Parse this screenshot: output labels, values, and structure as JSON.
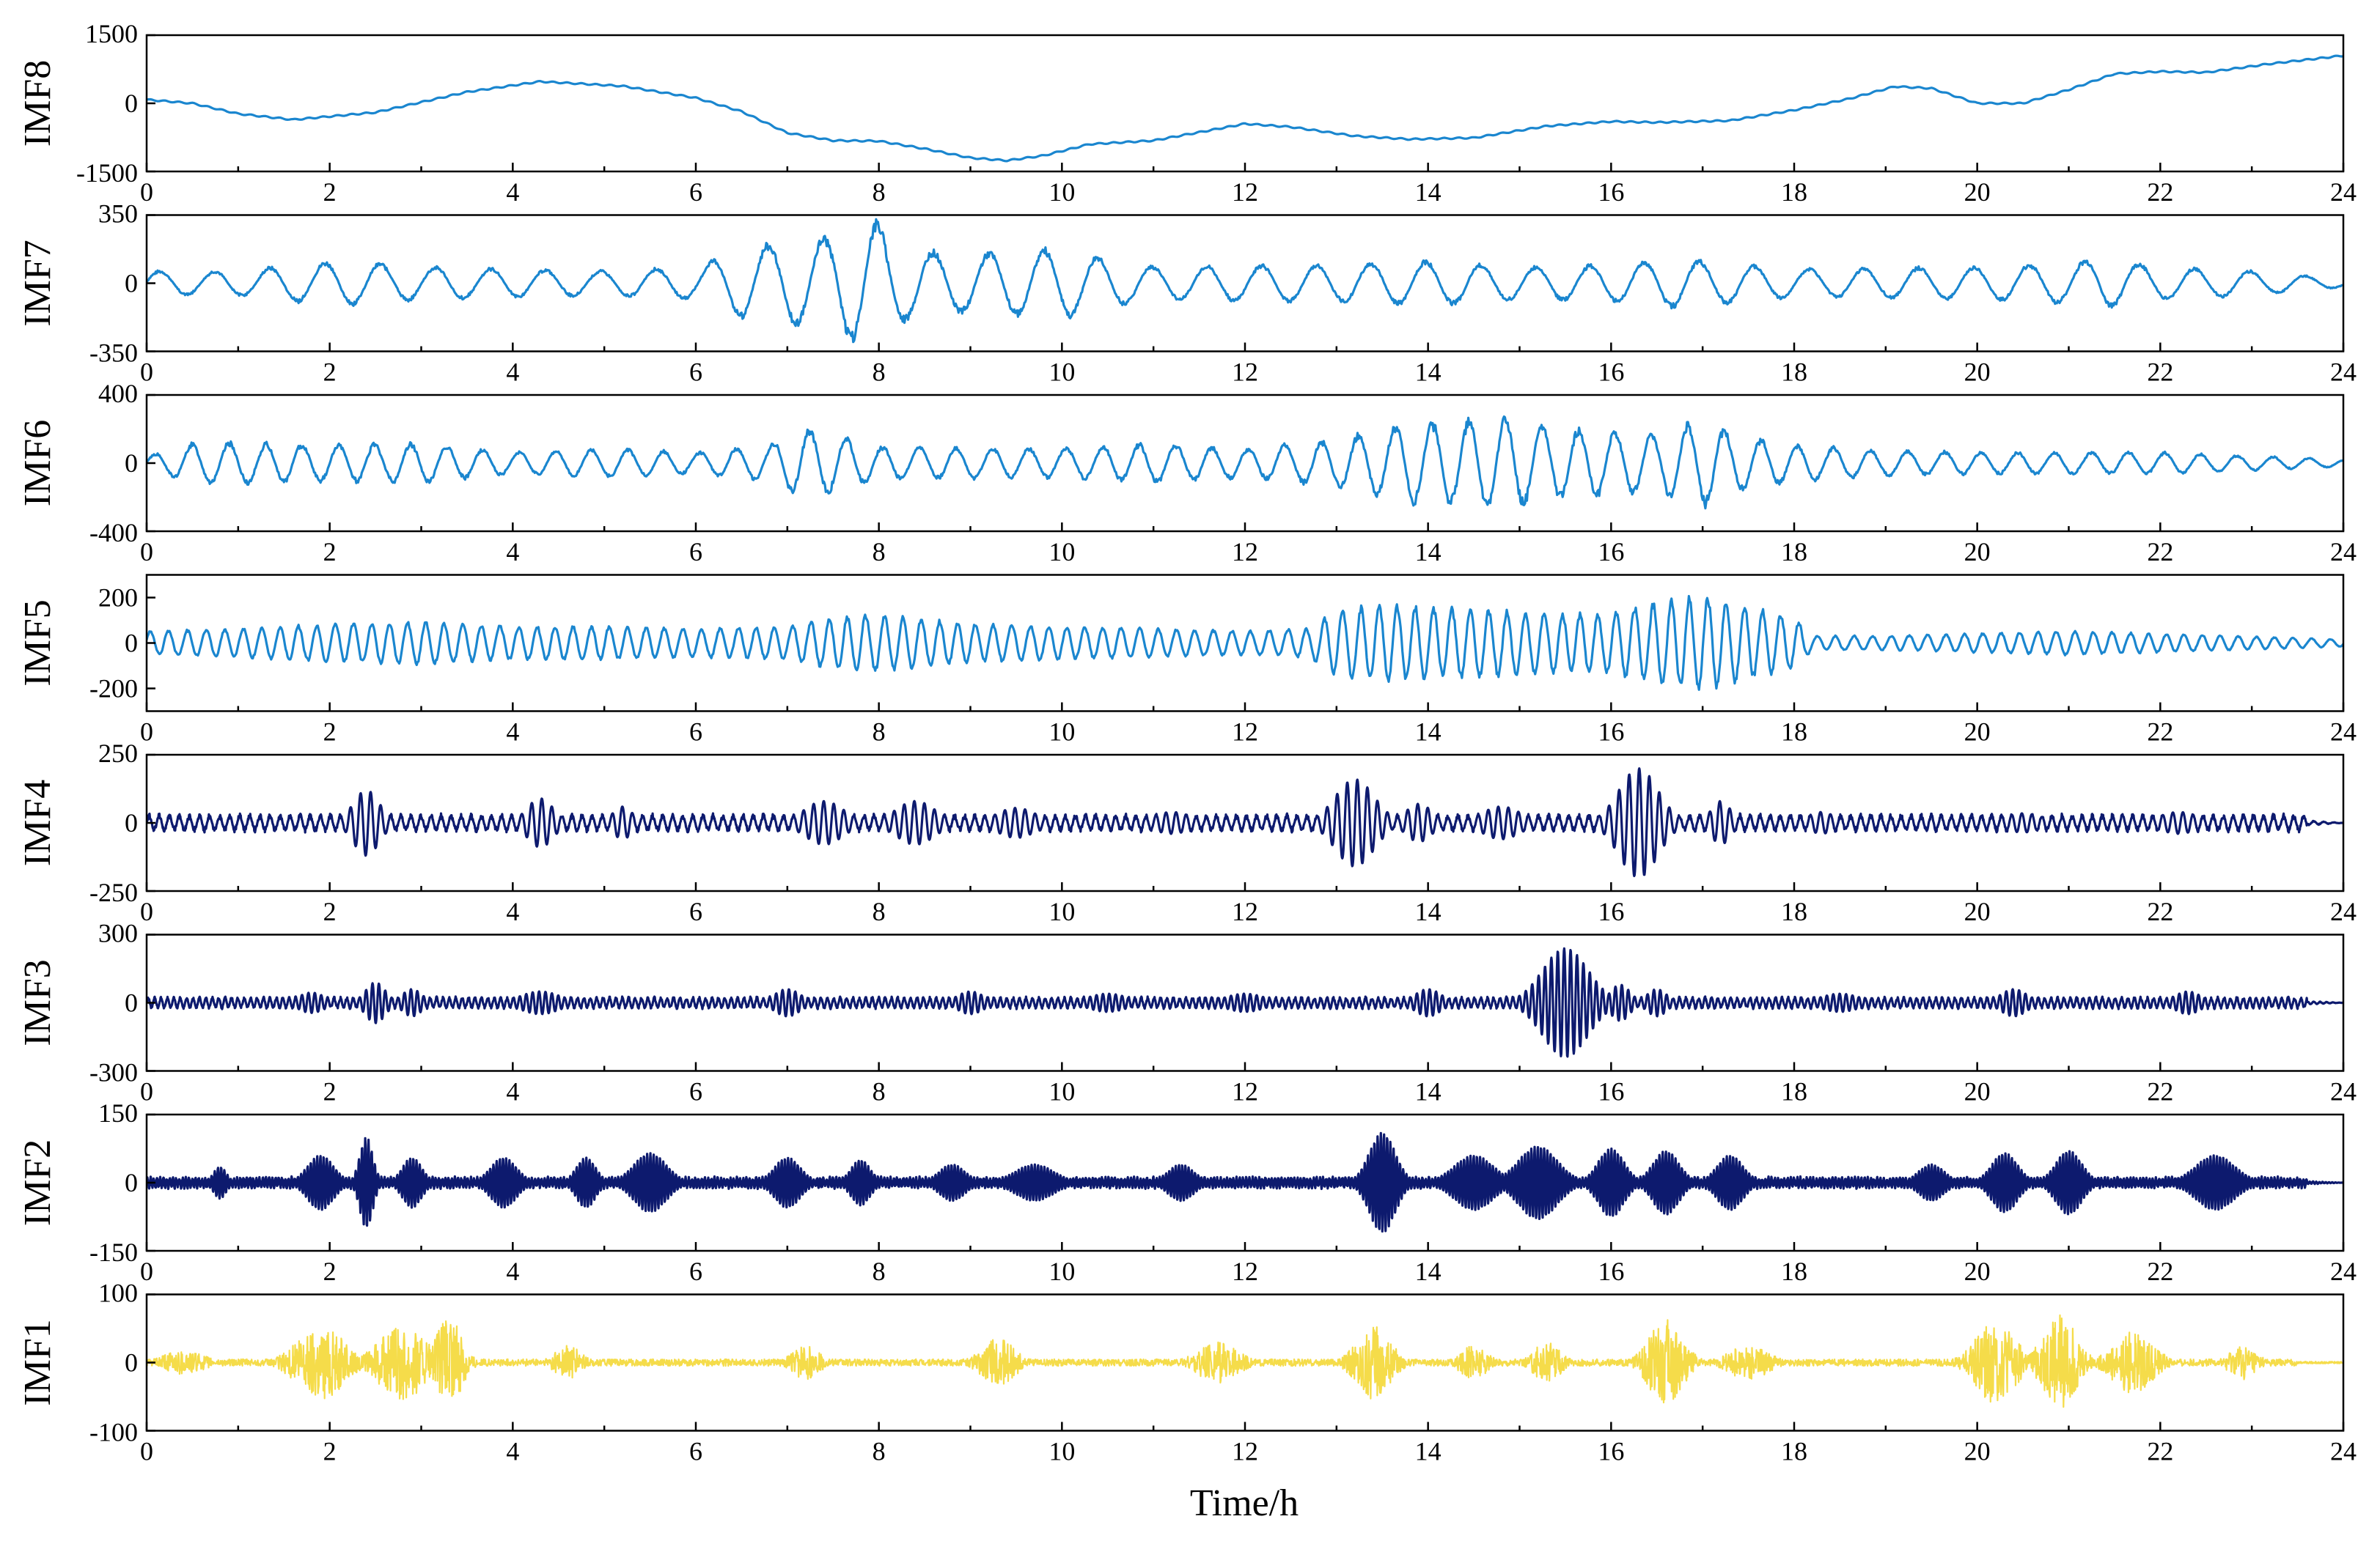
{
  "chart_data": {
    "type": "line",
    "xlabel": "Time/h",
    "xlim": [
      0,
      24
    ],
    "x_ticks": [
      "0",
      "2",
      "4",
      "6",
      "8",
      "10",
      "12",
      "14",
      "16",
      "18",
      "20",
      "22",
      "24"
    ],
    "panels": [
      {
        "name": "IMF8",
        "ylim": [
          -1500,
          1500
        ],
        "y_ticks": [
          "1500",
          "0",
          "-1500"
        ],
        "color": "#1a86cf",
        "kind": "trend",
        "points": [
          [
            0,
            80
          ],
          [
            0.5,
            0
          ],
          [
            1,
            -230
          ],
          [
            1.6,
            -360
          ],
          [
            2.5,
            -200
          ],
          [
            3.5,
            250
          ],
          [
            4.3,
            480
          ],
          [
            5.2,
            380
          ],
          [
            6,
            120
          ],
          [
            6.5,
            -180
          ],
          [
            7,
            -650
          ],
          [
            7.5,
            -820
          ],
          [
            8,
            -830
          ],
          [
            8.5,
            -1000
          ],
          [
            9,
            -1200
          ],
          [
            9.4,
            -1260
          ],
          [
            9.8,
            -1150
          ],
          [
            10.3,
            -900
          ],
          [
            11,
            -820
          ],
          [
            11.6,
            -600
          ],
          [
            12,
            -450
          ],
          [
            12.5,
            -520
          ],
          [
            13.2,
            -720
          ],
          [
            13.8,
            -790
          ],
          [
            14.5,
            -760
          ],
          [
            15.3,
            -500
          ],
          [
            16,
            -400
          ],
          [
            16.5,
            -420
          ],
          [
            17.3,
            -380
          ],
          [
            18,
            -150
          ],
          [
            18.6,
            100
          ],
          [
            19.1,
            370
          ],
          [
            19.5,
            330
          ],
          [
            20,
            0
          ],
          [
            20.5,
            0
          ],
          [
            21,
            300
          ],
          [
            21.5,
            650
          ],
          [
            22,
            700
          ],
          [
            22.5,
            680
          ],
          [
            23.2,
            870
          ],
          [
            24,
            1050
          ]
        ]
      },
      {
        "name": "IMF7",
        "ylim": [
          -350,
          350
        ],
        "y_ticks": [
          "350",
          "0",
          "-350"
        ],
        "color": "#1a86cf",
        "kind": "osc",
        "period": 0.6,
        "seed": 7,
        "noise": 0.25,
        "base": 40,
        "env": [
          [
            0,
            60
          ],
          [
            1,
            60
          ],
          [
            1.6,
            90
          ],
          [
            2.2,
            110
          ],
          [
            3,
            80
          ],
          [
            4,
            70
          ],
          [
            5,
            60
          ],
          [
            6,
            80
          ],
          [
            6.5,
            170
          ],
          [
            7,
            200
          ],
          [
            7.5,
            230
          ],
          [
            7.9,
            330
          ],
          [
            8.3,
            180
          ],
          [
            8.8,
            140
          ],
          [
            10,
            170
          ],
          [
            10.5,
            120
          ],
          [
            11,
            80
          ],
          [
            12,
            90
          ],
          [
            13,
            90
          ],
          [
            14,
            110
          ],
          [
            15,
            80
          ],
          [
            16,
            90
          ],
          [
            16.7,
            120
          ],
          [
            18,
            70
          ],
          [
            20,
            80
          ],
          [
            21,
            100
          ],
          [
            21.4,
            120
          ],
          [
            22,
            80
          ],
          [
            23,
            60
          ],
          [
            24,
            20
          ]
        ]
      },
      {
        "name": "IMF6",
        "ylim": [
          -400,
          400
        ],
        "y_ticks": [
          "400",
          "0",
          "-400"
        ],
        "color": "#1a86cf",
        "kind": "osc",
        "period": 0.4,
        "seed": 13,
        "noise": 0.3,
        "base": 30,
        "env": [
          [
            0,
            40
          ],
          [
            0.6,
            120
          ],
          [
            1.2,
            110
          ],
          [
            2,
            100
          ],
          [
            3,
            110
          ],
          [
            4,
            60
          ],
          [
            5,
            80
          ],
          [
            6,
            60
          ],
          [
            6.8,
            100
          ],
          [
            7.2,
            200
          ],
          [
            8,
            90
          ],
          [
            10,
            80
          ],
          [
            11,
            110
          ],
          [
            12,
            80
          ],
          [
            13,
            130
          ],
          [
            13.8,
            220
          ],
          [
            14.3,
            230
          ],
          [
            14.8,
            260
          ],
          [
            15.3,
            200
          ],
          [
            16,
            180
          ],
          [
            16.5,
            160
          ],
          [
            17,
            240
          ],
          [
            17.4,
            150
          ],
          [
            18,
            100
          ],
          [
            19,
            70
          ],
          [
            20,
            60
          ],
          [
            22,
            60
          ],
          [
            24,
            20
          ]
        ]
      },
      {
        "name": "IMF5",
        "ylim": [
          -300,
          300
        ],
        "y_ticks": [
          "200",
          "0",
          "-200"
        ],
        "tick_vals": [
          200,
          0,
          -200
        ],
        "color": "#1a86cf",
        "kind": "osc",
        "period": 0.2,
        "seed": 21,
        "noise": 0.2,
        "base": 20,
        "env": [
          [
            0,
            50
          ],
          [
            1,
            60
          ],
          [
            2,
            80
          ],
          [
            3,
            90
          ],
          [
            4,
            70
          ],
          [
            5,
            70
          ],
          [
            6,
            60
          ],
          [
            7,
            70
          ],
          [
            7.5,
            110
          ],
          [
            8,
            120
          ],
          [
            9,
            80
          ],
          [
            10,
            70
          ],
          [
            11,
            60
          ],
          [
            12,
            50
          ],
          [
            12.7,
            60
          ],
          [
            13,
            140
          ],
          [
            13.5,
            160
          ],
          [
            14,
            150
          ],
          [
            14.8,
            140
          ],
          [
            15.5,
            120
          ],
          [
            16,
            130
          ],
          [
            16.5,
            170
          ],
          [
            17,
            200
          ],
          [
            17.5,
            150
          ],
          [
            18,
            110
          ],
          [
            18.2,
            30
          ],
          [
            19,
            30
          ],
          [
            20,
            40
          ],
          [
            21,
            50
          ],
          [
            22,
            40
          ],
          [
            24,
            15
          ]
        ]
      },
      {
        "name": "IMF4",
        "ylim": [
          -250,
          250
        ],
        "y_ticks": [
          "250",
          "0",
          "-250"
        ],
        "color": "#0d1a6e",
        "kind": "burst",
        "period": 0.11,
        "seed": 31,
        "base": 25,
        "bursts": [
          [
            2.4,
            0.2,
            120
          ],
          [
            4.3,
            0.2,
            90
          ],
          [
            5.2,
            0.15,
            60
          ],
          [
            7.4,
            0.3,
            80
          ],
          [
            8.4,
            0.3,
            80
          ],
          [
            9.5,
            0.3,
            55
          ],
          [
            11.2,
            0.3,
            40
          ],
          [
            13.2,
            0.3,
            160
          ],
          [
            13.9,
            0.2,
            70
          ],
          [
            14.8,
            0.3,
            60
          ],
          [
            16.3,
            0.3,
            200
          ],
          [
            17.2,
            0.15,
            80
          ],
          [
            18.3,
            0.2,
            40
          ],
          [
            20.5,
            0.3,
            35
          ],
          [
            22.2,
            0.3,
            40
          ]
        ]
      },
      {
        "name": "IMF3",
        "ylim": [
          -300,
          300
        ],
        "y_ticks": [
          "300",
          "0",
          "-300"
        ],
        "color": "#0d1a6e",
        "kind": "burst",
        "period": 0.07,
        "seed": 41,
        "base": 20,
        "bursts": [
          [
            1.8,
            0.2,
            45
          ],
          [
            2.5,
            0.15,
            90
          ],
          [
            2.9,
            0.15,
            60
          ],
          [
            4.3,
            0.3,
            50
          ],
          [
            7,
            0.2,
            60
          ],
          [
            9,
            0.2,
            50
          ],
          [
            10.5,
            0.3,
            40
          ],
          [
            12,
            0.3,
            40
          ],
          [
            14,
            0.2,
            60
          ],
          [
            15.5,
            0.35,
            240
          ],
          [
            16.1,
            0.15,
            80
          ],
          [
            16.5,
            0.15,
            60
          ],
          [
            18.5,
            0.3,
            40
          ],
          [
            20.4,
            0.2,
            60
          ],
          [
            22.3,
            0.2,
            50
          ]
        ]
      },
      {
        "name": "IMF2",
        "ylim": [
          -150,
          150
        ],
        "y_ticks": [
          "150",
          "0",
          "-150"
        ],
        "color": "#0d1a6e",
        "kind": "burst",
        "period": 0.035,
        "seed": 51,
        "base": 10,
        "bursts": [
          [
            0.8,
            0.1,
            35
          ],
          [
            1.9,
            0.2,
            60
          ],
          [
            2.4,
            0.1,
            100
          ],
          [
            2.9,
            0.15,
            55
          ],
          [
            3.9,
            0.2,
            55
          ],
          [
            4.8,
            0.15,
            55
          ],
          [
            5.5,
            0.25,
            65
          ],
          [
            7,
            0.2,
            55
          ],
          [
            7.8,
            0.15,
            50
          ],
          [
            8.8,
            0.2,
            40
          ],
          [
            9.7,
            0.3,
            40
          ],
          [
            11.3,
            0.2,
            40
          ],
          [
            13.5,
            0.2,
            110
          ],
          [
            14.5,
            0.3,
            60
          ],
          [
            15.2,
            0.3,
            80
          ],
          [
            16,
            0.2,
            75
          ],
          [
            16.6,
            0.2,
            70
          ],
          [
            17.3,
            0.2,
            60
          ],
          [
            19.5,
            0.2,
            40
          ],
          [
            20.3,
            0.2,
            65
          ],
          [
            21,
            0.2,
            70
          ],
          [
            22.6,
            0.3,
            60
          ]
        ]
      },
      {
        "name": "IMF1",
        "ylim": [
          -100,
          100
        ],
        "y_ticks": [
          "100",
          "0",
          "-100"
        ],
        "color": "#f5dc4a",
        "kind": "noise",
        "seed": 61,
        "base": 5,
        "bursts": [
          [
            0.4,
            0.3,
            18
          ],
          [
            1.9,
            0.35,
            55
          ],
          [
            2.8,
            0.35,
            55
          ],
          [
            3.3,
            0.2,
            65
          ],
          [
            4.6,
            0.2,
            25
          ],
          [
            7.2,
            0.2,
            25
          ],
          [
            9.3,
            0.25,
            35
          ],
          [
            11.7,
            0.3,
            30
          ],
          [
            13.4,
            0.25,
            55
          ],
          [
            14.5,
            0.2,
            25
          ],
          [
            15.3,
            0.2,
            30
          ],
          [
            16.6,
            0.25,
            65
          ],
          [
            17.5,
            0.3,
            25
          ],
          [
            20.2,
            0.3,
            60
          ],
          [
            20.9,
            0.25,
            70
          ],
          [
            21.7,
            0.3,
            45
          ],
          [
            22.9,
            0.2,
            25
          ]
        ]
      }
    ]
  }
}
